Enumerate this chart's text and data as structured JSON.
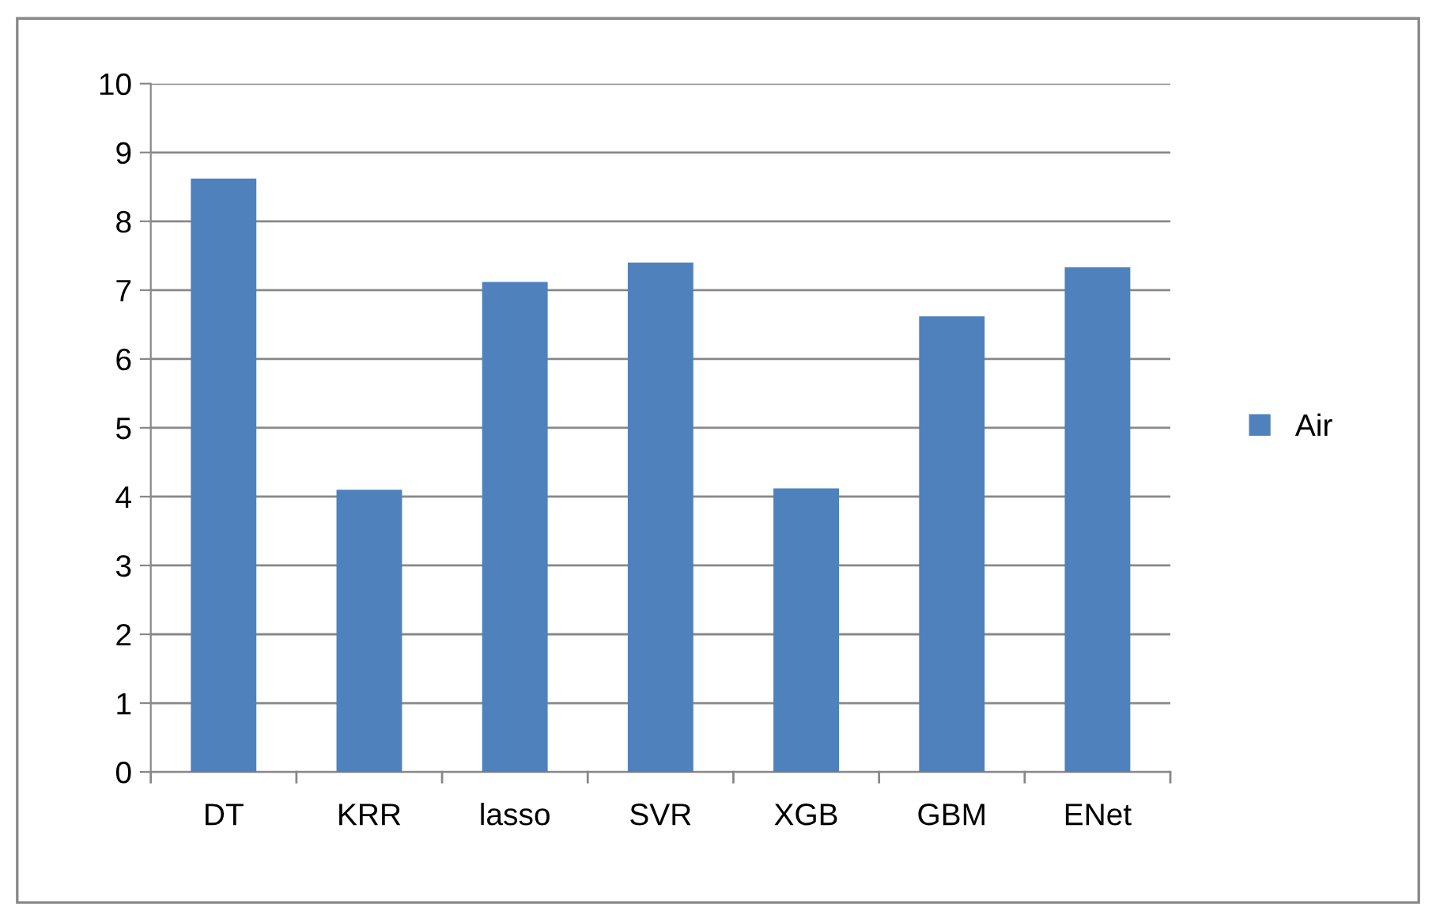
{
  "chart_data": {
    "type": "bar",
    "categories": [
      "DT",
      "KRR",
      "lasso",
      "SVR",
      "XGB",
      "GBM",
      "ENet"
    ],
    "series": [
      {
        "name": "Air",
        "color": "#4f81bd",
        "values": [
          8.62,
          4.1,
          7.12,
          7.4,
          4.12,
          6.62,
          7.33
        ]
      }
    ],
    "ylim": [
      0,
      10
    ],
    "yticks": [
      0,
      1,
      2,
      3,
      4,
      5,
      6,
      7,
      8,
      9,
      10
    ],
    "grid": "y",
    "legend": "right"
  }
}
